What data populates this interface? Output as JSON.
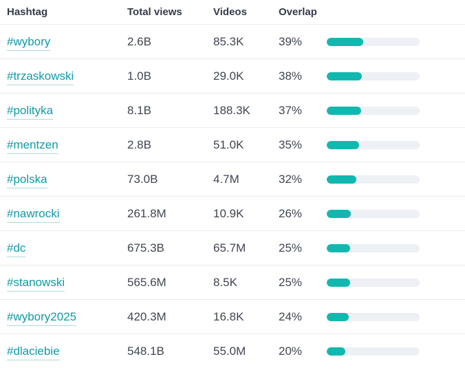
{
  "table": {
    "headers": {
      "hashtag": "Hashtag",
      "total_views": "Total views",
      "videos": "Videos",
      "overlap": "Overlap"
    },
    "rows": [
      {
        "hashtag": "#wybory",
        "total_views": "2.6B",
        "videos": "85.3K",
        "overlap": "39%",
        "overlap_pct": 39
      },
      {
        "hashtag": "#trzaskowski",
        "total_views": "1.0B",
        "videos": "29.0K",
        "overlap": "38%",
        "overlap_pct": 38
      },
      {
        "hashtag": "#polityka",
        "total_views": "8.1B",
        "videos": "188.3K",
        "overlap": "37%",
        "overlap_pct": 37
      },
      {
        "hashtag": "#mentzen",
        "total_views": "2.8B",
        "videos": "51.0K",
        "overlap": "35%",
        "overlap_pct": 35
      },
      {
        "hashtag": "#polska",
        "total_views": "73.0B",
        "videos": "4.7M",
        "overlap": "32%",
        "overlap_pct": 32
      },
      {
        "hashtag": "#nawrocki",
        "total_views": "261.8M",
        "videos": "10.9K",
        "overlap": "26%",
        "overlap_pct": 26
      },
      {
        "hashtag": "#dc",
        "total_views": "675.3B",
        "videos": "65.7M",
        "overlap": "25%",
        "overlap_pct": 25
      },
      {
        "hashtag": "#stanowski",
        "total_views": "565.6M",
        "videos": "8.5K",
        "overlap": "25%",
        "overlap_pct": 25
      },
      {
        "hashtag": "#wybory2025",
        "total_views": "420.3M",
        "videos": "16.8K",
        "overlap": "24%",
        "overlap_pct": 24
      },
      {
        "hashtag": "#dlaciebie",
        "total_views": "548.1B",
        "videos": "55.0M",
        "overlap": "20%",
        "overlap_pct": 20
      }
    ],
    "colors": {
      "bar_fill": "#12b8b0",
      "bar_track": "#edf0f4",
      "link_teal": "#0e9aa6",
      "row_border": "#e9ebef",
      "header_text": "#343b49",
      "body_text": "#3f4552"
    }
  }
}
